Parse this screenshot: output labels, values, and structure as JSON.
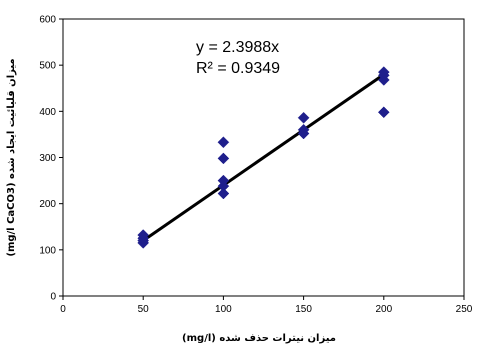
{
  "chart_data": {
    "type": "scatter",
    "xlabel": "میزان نیترات حذف شده  (mg/l)",
    "ylabel": "میزان قلیائیت ایجاد شده  (mg/l CaCO3)",
    "xlim": [
      0,
      250
    ],
    "ylim": [
      0,
      600
    ],
    "xticks": [
      0,
      50,
      100,
      150,
      200,
      250
    ],
    "yticks": [
      0,
      100,
      200,
      300,
      400,
      500,
      600
    ],
    "grid": false,
    "legend": "none",
    "marker_color": "#1f1f8c",
    "line_color": "#000000",
    "series": [
      {
        "points": [
          [
            50,
            115
          ],
          [
            50,
            120
          ],
          [
            50,
            125
          ],
          [
            50,
            132
          ],
          [
            100,
            222
          ],
          [
            100,
            238
          ],
          [
            100,
            250
          ],
          [
            100,
            298
          ],
          [
            100,
            333
          ],
          [
            150,
            352
          ],
          [
            150,
            360
          ],
          [
            150,
            386
          ],
          [
            200,
            398
          ],
          [
            200,
            468
          ],
          [
            200,
            478
          ],
          [
            200,
            485
          ]
        ]
      }
    ],
    "trendline": {
      "type": "linear",
      "slope": 2.3988,
      "x_range": [
        50,
        200
      ],
      "equation": "y = 2.3988x",
      "r_squared": "R² = 0.9349"
    }
  }
}
